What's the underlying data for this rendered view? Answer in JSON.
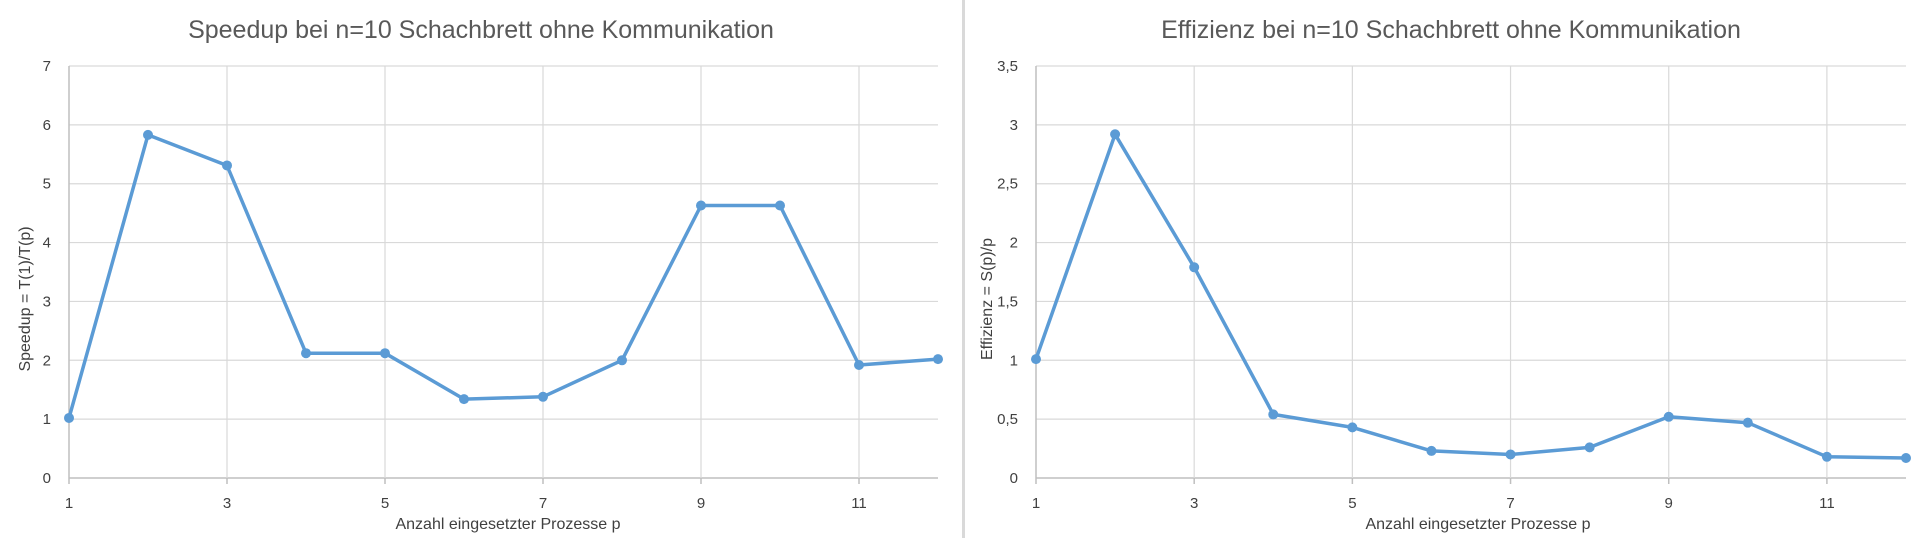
{
  "chart_data": [
    {
      "type": "line",
      "title": "Speedup bei n=10 Schachbrett ohne Kommunikation",
      "xlabel": "Anzahl eingesetzter Prozesse p",
      "ylabel": "Speedup = T(1)/T(p)",
      "xlim": [
        1,
        12
      ],
      "ylim": [
        0,
        7
      ],
      "x_ticks": [
        "1",
        "3",
        "5",
        "7",
        "9",
        "11"
      ],
      "x_tick_values": [
        1,
        3,
        5,
        7,
        9,
        11
      ],
      "y_ticks": [
        "0",
        "1",
        "2",
        "3",
        "4",
        "5",
        "6",
        "7"
      ],
      "y_tick_values": [
        0,
        1,
        2,
        3,
        4,
        5,
        6,
        7
      ],
      "grid": true,
      "series": [
        {
          "color": "#5b9bd5",
          "x": [
            1,
            2,
            3,
            4,
            5,
            6,
            7,
            8,
            9,
            10,
            11,
            12
          ],
          "values": [
            1.02,
            5.83,
            5.31,
            2.12,
            2.12,
            1.34,
            1.38,
            2.0,
            4.63,
            4.63,
            1.92,
            2.02
          ]
        }
      ]
    },
    {
      "type": "line",
      "title": "Effizienz bei n=10 Schachbrett ohne Kommunikation",
      "xlabel": "Anzahl eingesetzter Prozesse p",
      "ylabel": "Effizienz = S(p)/p",
      "xlim": [
        1,
        12
      ],
      "ylim": [
        0,
        3.5
      ],
      "x_ticks": [
        "1",
        "3",
        "5",
        "7",
        "9",
        "11"
      ],
      "x_tick_values": [
        1,
        3,
        5,
        7,
        9,
        11
      ],
      "y_ticks": [
        "0",
        "0,5",
        "1",
        "1,5",
        "2",
        "2,5",
        "3",
        "3,5"
      ],
      "y_tick_values": [
        0,
        0.5,
        1,
        1.5,
        2,
        2.5,
        3,
        3.5
      ],
      "grid": true,
      "series": [
        {
          "color": "#5b9bd5",
          "x": [
            1,
            2,
            3,
            4,
            5,
            6,
            7,
            8,
            9,
            10,
            11,
            12
          ],
          "values": [
            1.01,
            2.92,
            1.79,
            0.54,
            0.43,
            0.23,
            0.2,
            0.26,
            0.52,
            0.47,
            0.18,
            0.17
          ]
        }
      ]
    }
  ]
}
